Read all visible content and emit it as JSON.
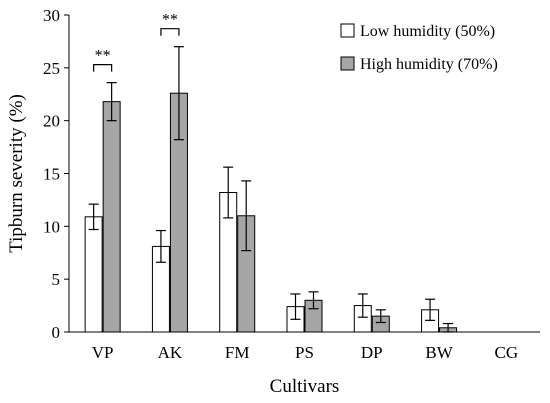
{
  "chart_data": {
    "type": "bar",
    "title": "",
    "xlabel": "Cultivars",
    "ylabel": "Tipburn severity (%)",
    "categories": [
      "VP",
      "AK",
      "FM",
      "PS",
      "DP",
      "BW",
      "CG"
    ],
    "ylim": [
      0,
      30
    ],
    "yticks": [
      0,
      5,
      10,
      15,
      20,
      25,
      30
    ],
    "grid": false,
    "legend_position": "top-right",
    "series": [
      {
        "name": "Low humidity  (50%)",
        "values": [
          10.9,
          8.1,
          13.2,
          2.4,
          2.5,
          2.1,
          0
        ],
        "errors": [
          1.2,
          1.5,
          2.4,
          1.2,
          1.1,
          1.0,
          0
        ],
        "color": "#ffffff"
      },
      {
        "name": "High humidity  (70%)",
        "values": [
          21.8,
          22.6,
          11.0,
          3.0,
          1.5,
          0.4,
          0
        ],
        "errors": [
          1.8,
          4.4,
          3.3,
          0.8,
          0.6,
          0.4,
          0
        ],
        "color": "#a6a6a6"
      }
    ],
    "annotations": [
      {
        "category": "VP",
        "text": "**"
      },
      {
        "category": "AK",
        "text": "**"
      }
    ]
  }
}
